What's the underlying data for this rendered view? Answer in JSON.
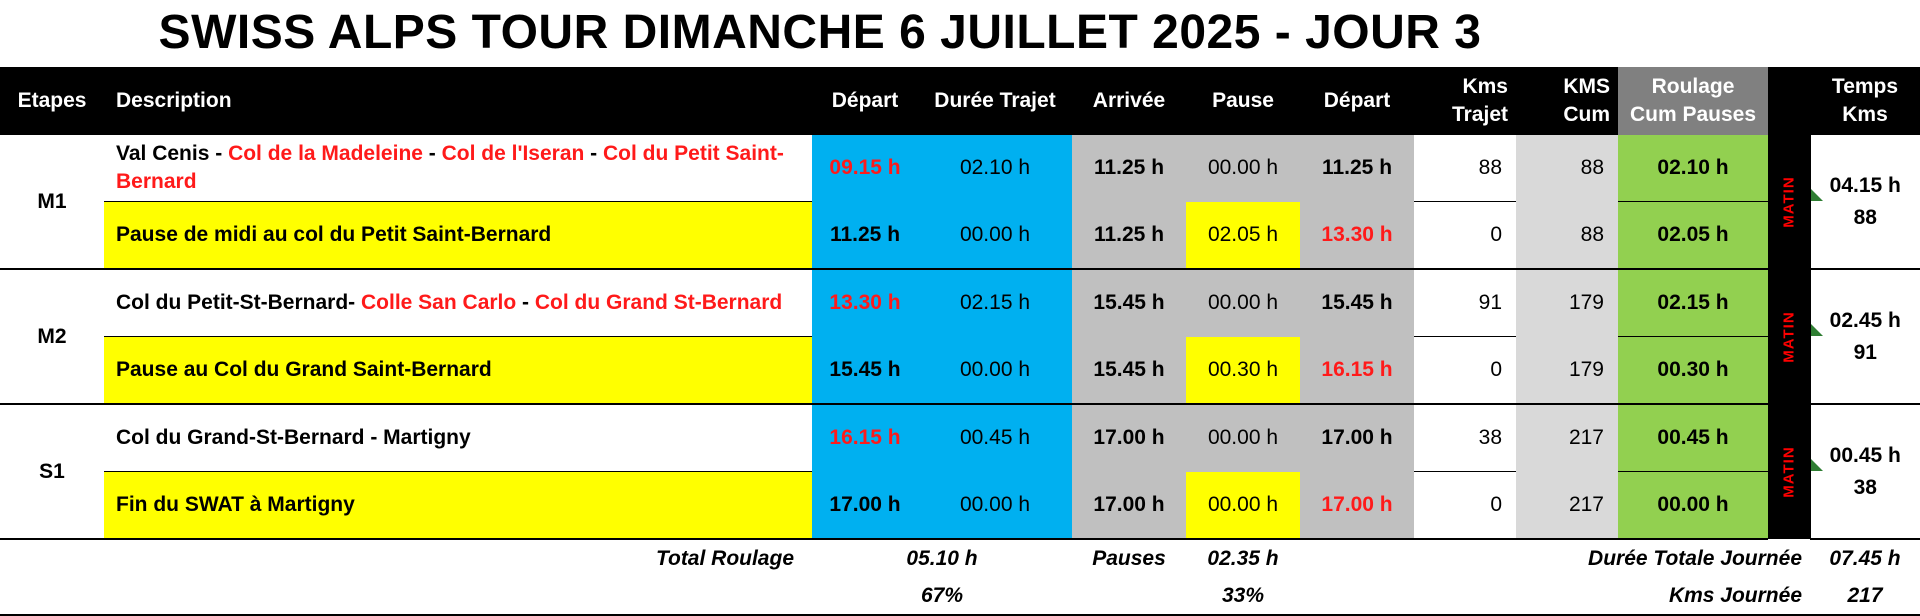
{
  "title": "SWISS ALPS TOUR DIMANCHE 6 JUILLET 2025 - JOUR 3",
  "headers": {
    "etapes": "Etapes",
    "description": "Description",
    "depart": "Départ",
    "duree": "Durée Trajet",
    "arrivee": "Arrivée",
    "pause": "Pause",
    "depart2": "Départ",
    "kms_trajet_1": "Kms",
    "kms_trajet_2": "Trajet",
    "kms_cum_1": "KMS",
    "kms_cum_2": "Cum",
    "roulage_1": "Roulage",
    "roulage_2": "Cum Pauses",
    "temps_1": "Temps",
    "temps_2": "Kms"
  },
  "stages": [
    {
      "id": "M1",
      "matin": "MATIN",
      "temps": "04.15 h",
      "kms": "88",
      "rows": [
        {
          "desc_parts": [
            "Val Cenis",
            " - ",
            "Col de la Madeleine",
            " - ",
            "Col de l'Iseran",
            " - ",
            "Col du Petit Saint-Bernard"
          ],
          "depart": "09.15 h",
          "duree": "02.10 h",
          "arrivee": "11.25 h",
          "pause": "00.00 h",
          "depart2": "11.25 h",
          "kms_trajet": "88",
          "kms_cum": "88",
          "roulage": "02.10 h"
        },
        {
          "desc": "Pause de midi au col du Petit Saint-Bernard",
          "depart": "11.25 h",
          "duree": "00.00 h",
          "arrivee": "11.25 h",
          "pause": "02.05 h",
          "depart2": "13.30 h",
          "kms_trajet": "0",
          "kms_cum": "88",
          "roulage": "02.05 h"
        }
      ]
    },
    {
      "id": "M2",
      "matin": "MATIN",
      "temps": "02.45 h",
      "kms": "91",
      "rows": [
        {
          "desc_parts": [
            "Col du Petit-St-Bernard",
            "- ",
            "Colle San Carlo",
            " - ",
            "Col du Grand St-Bernard"
          ],
          "depart": "13.30 h",
          "duree": "02.15 h",
          "arrivee": "15.45 h",
          "pause": "00.00 h",
          "depart2": "15.45 h",
          "kms_trajet": "91",
          "kms_cum": "179",
          "roulage": "02.15 h"
        },
        {
          "desc": "Pause au Col du Grand Saint-Bernard",
          "depart": "15.45 h",
          "duree": "00.00 h",
          "arrivee": "15.45 h",
          "pause": "00.30 h",
          "depart2": "16.15 h",
          "kms_trajet": "0",
          "kms_cum": "179",
          "roulage": "00.30 h"
        }
      ]
    },
    {
      "id": "S1",
      "matin": "MATIN",
      "temps": "00.45 h",
      "kms": "38",
      "rows": [
        {
          "desc": "Col du Grand-St-Bernard - Martigny",
          "depart": "16.15 h",
          "duree": "00.45 h",
          "arrivee": "17.00 h",
          "pause": "00.00 h",
          "depart2": "17.00 h",
          "kms_trajet": "38",
          "kms_cum": "217",
          "roulage": "00.45 h"
        },
        {
          "desc": "Fin du SWAT à Martigny",
          "depart": "17.00 h",
          "duree": "00.00 h",
          "arrivee": "17.00 h",
          "pause": "00.00 h",
          "depart2": "17.00 h",
          "kms_trajet": "0",
          "kms_cum": "217",
          "roulage": "00.00 h"
        }
      ]
    }
  ],
  "totals": {
    "roulage_label": "Total Roulage",
    "roulage_value": "05.10 h",
    "roulage_pct": "67%",
    "pauses_label": "Pauses",
    "pauses_value": "02.35 h",
    "pauses_pct": "33%",
    "duree_label": "Durée Totale Journée",
    "duree_value": "07.45 h",
    "kms_label": "Kms Journée",
    "kms_value": "217"
  },
  "colors": {
    "red_text": "#ff1a1a",
    "blue": "#00b0f0",
    "yellow": "#ffff00",
    "green": "#92d050",
    "gray": "#c0c0c0",
    "light_gray": "#d9d9d9"
  }
}
